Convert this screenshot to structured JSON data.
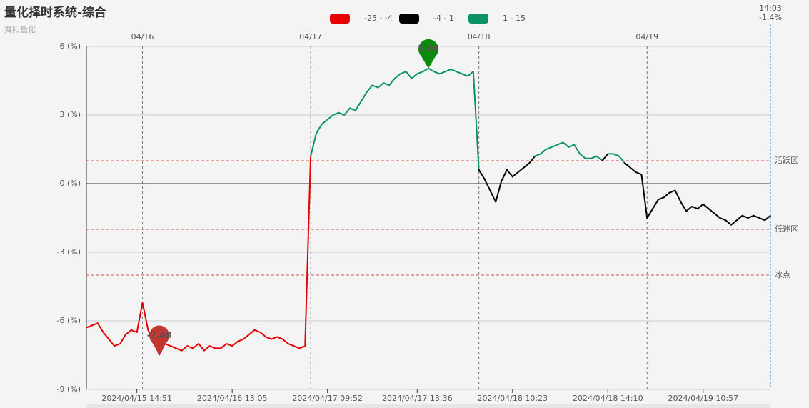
{
  "chart_data": {
    "type": "line",
    "title": "量化择时系统-综合",
    "subtitle": "舞阳量化",
    "pieces": [
      {
        "min": -25,
        "max": -4,
        "color": "#e60000",
        "label": "-25 - -4"
      },
      {
        "min": -4,
        "max": 1,
        "color": "#000000",
        "label": "-4 - 1"
      },
      {
        "min": 1,
        "max": 15,
        "color": "#0a9465",
        "label": "1 - 15"
      }
    ],
    "categories": [
      null,
      null,
      null,
      null,
      null,
      null,
      null,
      null,
      null,
      "2024/04/15 14:51",
      null,
      null,
      null,
      null,
      null,
      null,
      null,
      null,
      null,
      null,
      null,
      null,
      null,
      null,
      null,
      null,
      "2024/04/16 13:05",
      null,
      null,
      null,
      null,
      null,
      null,
      null,
      null,
      null,
      null,
      null,
      null,
      null,
      null,
      null,
      null,
      "2024/04/17 09:52",
      null,
      null,
      null,
      null,
      null,
      null,
      null,
      null,
      null,
      null,
      null,
      null,
      null,
      null,
      null,
      "2024/04/17 13:36",
      null,
      null,
      null,
      null,
      null,
      null,
      null,
      null,
      null,
      null,
      null,
      null,
      null,
      null,
      null,
      null,
      "2024/04/18 10:23",
      null,
      null,
      null,
      null,
      null,
      null,
      null,
      null,
      null,
      null,
      null,
      null,
      null,
      null,
      null,
      null,
      "2024/04/18 14:10",
      null,
      null,
      null,
      null,
      null,
      null,
      null,
      null,
      null,
      null,
      null,
      null,
      null,
      null,
      null,
      null,
      "2024/04/19 10:57",
      null,
      null,
      null,
      null,
      null,
      null,
      null,
      null,
      null,
      null,
      null,
      null
    ],
    "day_labels": [
      null,
      null,
      null,
      null,
      null,
      null,
      null,
      null,
      null,
      null,
      "04/16",
      null,
      null,
      null,
      null,
      null,
      null,
      null,
      null,
      null,
      null,
      null,
      null,
      null,
      null,
      null,
      null,
      null,
      null,
      null,
      null,
      null,
      null,
      null,
      null,
      null,
      null,
      null,
      null,
      null,
      "04/17",
      null,
      null,
      null,
      null,
      null,
      null,
      null,
      null,
      null,
      null,
      null,
      null,
      null,
      null,
      null,
      null,
      null,
      null,
      null,
      null,
      null,
      null,
      null,
      null,
      null,
      null,
      null,
      null,
      null,
      "04/18",
      null,
      null,
      null,
      null,
      null,
      null,
      null,
      null,
      null,
      null,
      null,
      null,
      null,
      null,
      null,
      null,
      null,
      null,
      null,
      null,
      null,
      null,
      null,
      null,
      null,
      null,
      null,
      null,
      null,
      "04/19",
      null,
      null,
      null,
      null,
      null,
      null,
      null,
      null,
      null,
      null,
      null,
      null,
      null,
      null,
      null,
      null,
      null,
      null,
      null,
      null,
      null,
      null
    ],
    "values": [
      -6.3,
      -6.2,
      -6.1,
      -6.5,
      -6.8,
      -7.1,
      -7.0,
      -6.6,
      -6.4,
      -6.5,
      -5.2,
      -6.4,
      -6.9,
      -7.48,
      -7.0,
      -7.1,
      -7.2,
      -7.3,
      -7.1,
      -7.2,
      -7.0,
      -7.3,
      -7.1,
      -7.2,
      -7.2,
      -7.0,
      -7.1,
      -6.9,
      -6.8,
      -6.6,
      -6.4,
      -6.5,
      -6.7,
      -6.8,
      -6.7,
      -6.8,
      -7.0,
      -7.1,
      -7.2,
      -7.1,
      1.2,
      2.2,
      2.6,
      2.8,
      3.0,
      3.1,
      3.0,
      3.3,
      3.2,
      3.6,
      4.0,
      4.3,
      4.2,
      4.4,
      4.3,
      4.6,
      4.8,
      4.9,
      4.6,
      4.8,
      4.9,
      5.04,
      4.9,
      4.8,
      4.9,
      5.0,
      4.9,
      4.8,
      4.7,
      4.9,
      0.6,
      0.2,
      -0.3,
      -0.8,
      0.1,
      0.6,
      0.3,
      0.5,
      0.7,
      0.9,
      1.2,
      1.3,
      1.5,
      1.6,
      1.7,
      1.8,
      1.6,
      1.7,
      1.3,
      1.1,
      1.1,
      1.2,
      1.0,
      1.3,
      1.3,
      1.2,
      0.9,
      0.7,
      0.5,
      0.4,
      -1.5,
      -1.1,
      -0.7,
      -0.6,
      -0.4,
      -0.3,
      -0.8,
      -1.2,
      -1.0,
      -1.1,
      -0.9,
      -1.1,
      -1.3,
      -1.5,
      -1.6,
      -1.8,
      -1.6,
      -1.4,
      -1.5,
      -1.4,
      -1.5,
      -1.6,
      -1.4
    ],
    "value_labels": [
      null,
      null,
      null,
      null,
      null,
      null,
      null,
      null,
      null,
      null,
      null,
      null,
      null,
      null,
      null,
      null,
      null,
      null,
      null,
      null,
      null,
      null,
      null,
      null,
      null,
      null,
      null,
      null,
      null,
      null,
      null,
      null,
      null,
      null,
      null,
      null,
      null,
      null,
      null,
      null,
      null,
      null,
      null,
      null,
      null,
      null,
      null,
      null,
      null,
      null,
      null,
      null,
      null,
      null,
      null,
      null,
      null,
      null,
      null,
      null,
      null,
      null,
      null,
      null,
      null,
      null,
      null,
      null,
      null,
      null,
      null,
      null,
      null,
      null,
      null,
      null,
      null,
      null,
      null,
      null,
      null,
      null,
      null,
      null,
      null,
      null,
      null,
      null,
      null,
      null,
      null,
      null,
      null,
      null,
      null,
      null,
      null,
      null,
      null,
      null,
      null,
      null,
      null,
      null,
      null,
      null,
      null,
      null,
      null,
      null,
      null,
      null,
      null,
      null,
      null,
      null,
      null,
      null,
      null,
      null,
      null,
      null,
      "-1.4%"
    ],
    "latest_time": "14:03",
    "mark_points": [
      {
        "value": 5.04,
        "color": "#0a8a0a"
      },
      {
        "value": -7.48,
        "color": "#c23531"
      }
    ],
    "ref_lines": [
      {
        "value": 1,
        "label": "活跃区"
      },
      {
        "value": -2,
        "label": "低迷区"
      },
      {
        "value": -4,
        "label": "冰点"
      }
    ],
    "ylim": [
      -9,
      6
    ],
    "yticks": [
      {
        "value": 6,
        "label": "6 (%)"
      },
      {
        "value": 3,
        "label": "3 (%)"
      },
      {
        "value": 0,
        "label": "0 (%)"
      },
      {
        "value": -3,
        "label": "-3 (%)"
      },
      {
        "value": -6,
        "label": "-6 (%)"
      },
      {
        "value": -9,
        "label": "-9 (%)"
      }
    ],
    "grid": true
  }
}
